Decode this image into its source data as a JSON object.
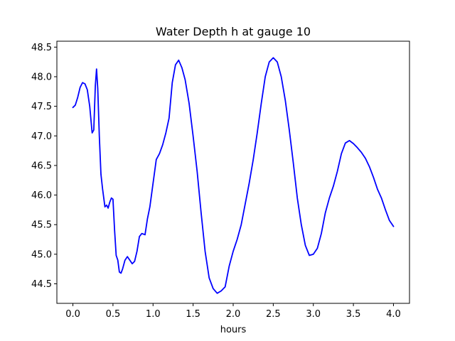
{
  "chart_data": {
    "type": "line",
    "title": "Water Depth h at gauge 10",
    "xlabel": "hours",
    "ylabel": "",
    "xlim": [
      -0.2,
      4.2
    ],
    "ylim": [
      44.17,
      48.6
    ],
    "xticks": [
      0.0,
      0.5,
      1.0,
      1.5,
      2.0,
      2.5,
      3.0,
      3.5,
      4.0
    ],
    "xtick_labels": [
      "0.0",
      "0.5",
      "1.0",
      "1.5",
      "2.0",
      "2.5",
      "3.0",
      "3.5",
      "4.0"
    ],
    "yticks": [
      44.5,
      45.0,
      45.5,
      46.0,
      46.5,
      47.0,
      47.5,
      48.0,
      48.5
    ],
    "ytick_labels": [
      "44.5",
      "45.0",
      "45.5",
      "46.0",
      "46.5",
      "47.0",
      "47.5",
      "48.0",
      "48.5"
    ],
    "grid": false,
    "series": [
      {
        "color": "#0000ff",
        "x": [
          0.0,
          0.03,
          0.06,
          0.09,
          0.12,
          0.15,
          0.18,
          0.21,
          0.24,
          0.26,
          0.28,
          0.295,
          0.31,
          0.33,
          0.35,
          0.37,
          0.4,
          0.42,
          0.44,
          0.46,
          0.48,
          0.5,
          0.52,
          0.54,
          0.56,
          0.58,
          0.6,
          0.62,
          0.65,
          0.68,
          0.71,
          0.74,
          0.77,
          0.8,
          0.83,
          0.86,
          0.9,
          0.93,
          0.96,
          1.0,
          1.04,
          1.08,
          1.12,
          1.16,
          1.2,
          1.24,
          1.28,
          1.32,
          1.36,
          1.4,
          1.45,
          1.5,
          1.55,
          1.6,
          1.65,
          1.7,
          1.75,
          1.8,
          1.85,
          1.9,
          1.95,
          2.0,
          2.05,
          2.1,
          2.15,
          2.2,
          2.25,
          2.3,
          2.35,
          2.4,
          2.45,
          2.5,
          2.55,
          2.6,
          2.65,
          2.7,
          2.75,
          2.8,
          2.85,
          2.9,
          2.95,
          3.0,
          3.05,
          3.1,
          3.15,
          3.2,
          3.25,
          3.3,
          3.35,
          3.4,
          3.45,
          3.5,
          3.55,
          3.6,
          3.65,
          3.7,
          3.75,
          3.8,
          3.85,
          3.9,
          3.95,
          4.0
        ],
        "y": [
          47.48,
          47.52,
          47.65,
          47.82,
          47.9,
          47.88,
          47.78,
          47.5,
          47.05,
          47.1,
          47.85,
          48.13,
          47.8,
          47.0,
          46.35,
          46.1,
          45.8,
          45.83,
          45.78,
          45.88,
          45.95,
          45.93,
          45.4,
          44.98,
          44.9,
          44.7,
          44.68,
          44.75,
          44.9,
          44.96,
          44.9,
          44.84,
          44.88,
          45.05,
          45.3,
          45.35,
          45.33,
          45.6,
          45.8,
          46.2,
          46.6,
          46.7,
          46.85,
          47.05,
          47.3,
          47.9,
          48.2,
          48.28,
          48.15,
          47.95,
          47.55,
          47.0,
          46.4,
          45.7,
          45.05,
          44.6,
          44.42,
          44.34,
          44.38,
          44.45,
          44.8,
          45.05,
          45.25,
          45.5,
          45.85,
          46.2,
          46.6,
          47.05,
          47.55,
          48.0,
          48.25,
          48.32,
          48.25,
          48.0,
          47.6,
          47.1,
          46.55,
          45.95,
          45.5,
          45.15,
          44.98,
          45.0,
          45.1,
          45.35,
          45.7,
          45.95,
          46.15,
          46.4,
          46.7,
          46.88,
          46.92,
          46.87,
          46.8,
          46.72,
          46.62,
          46.48,
          46.3,
          46.1,
          45.95,
          45.75,
          45.57,
          45.47
        ]
      }
    ]
  }
}
